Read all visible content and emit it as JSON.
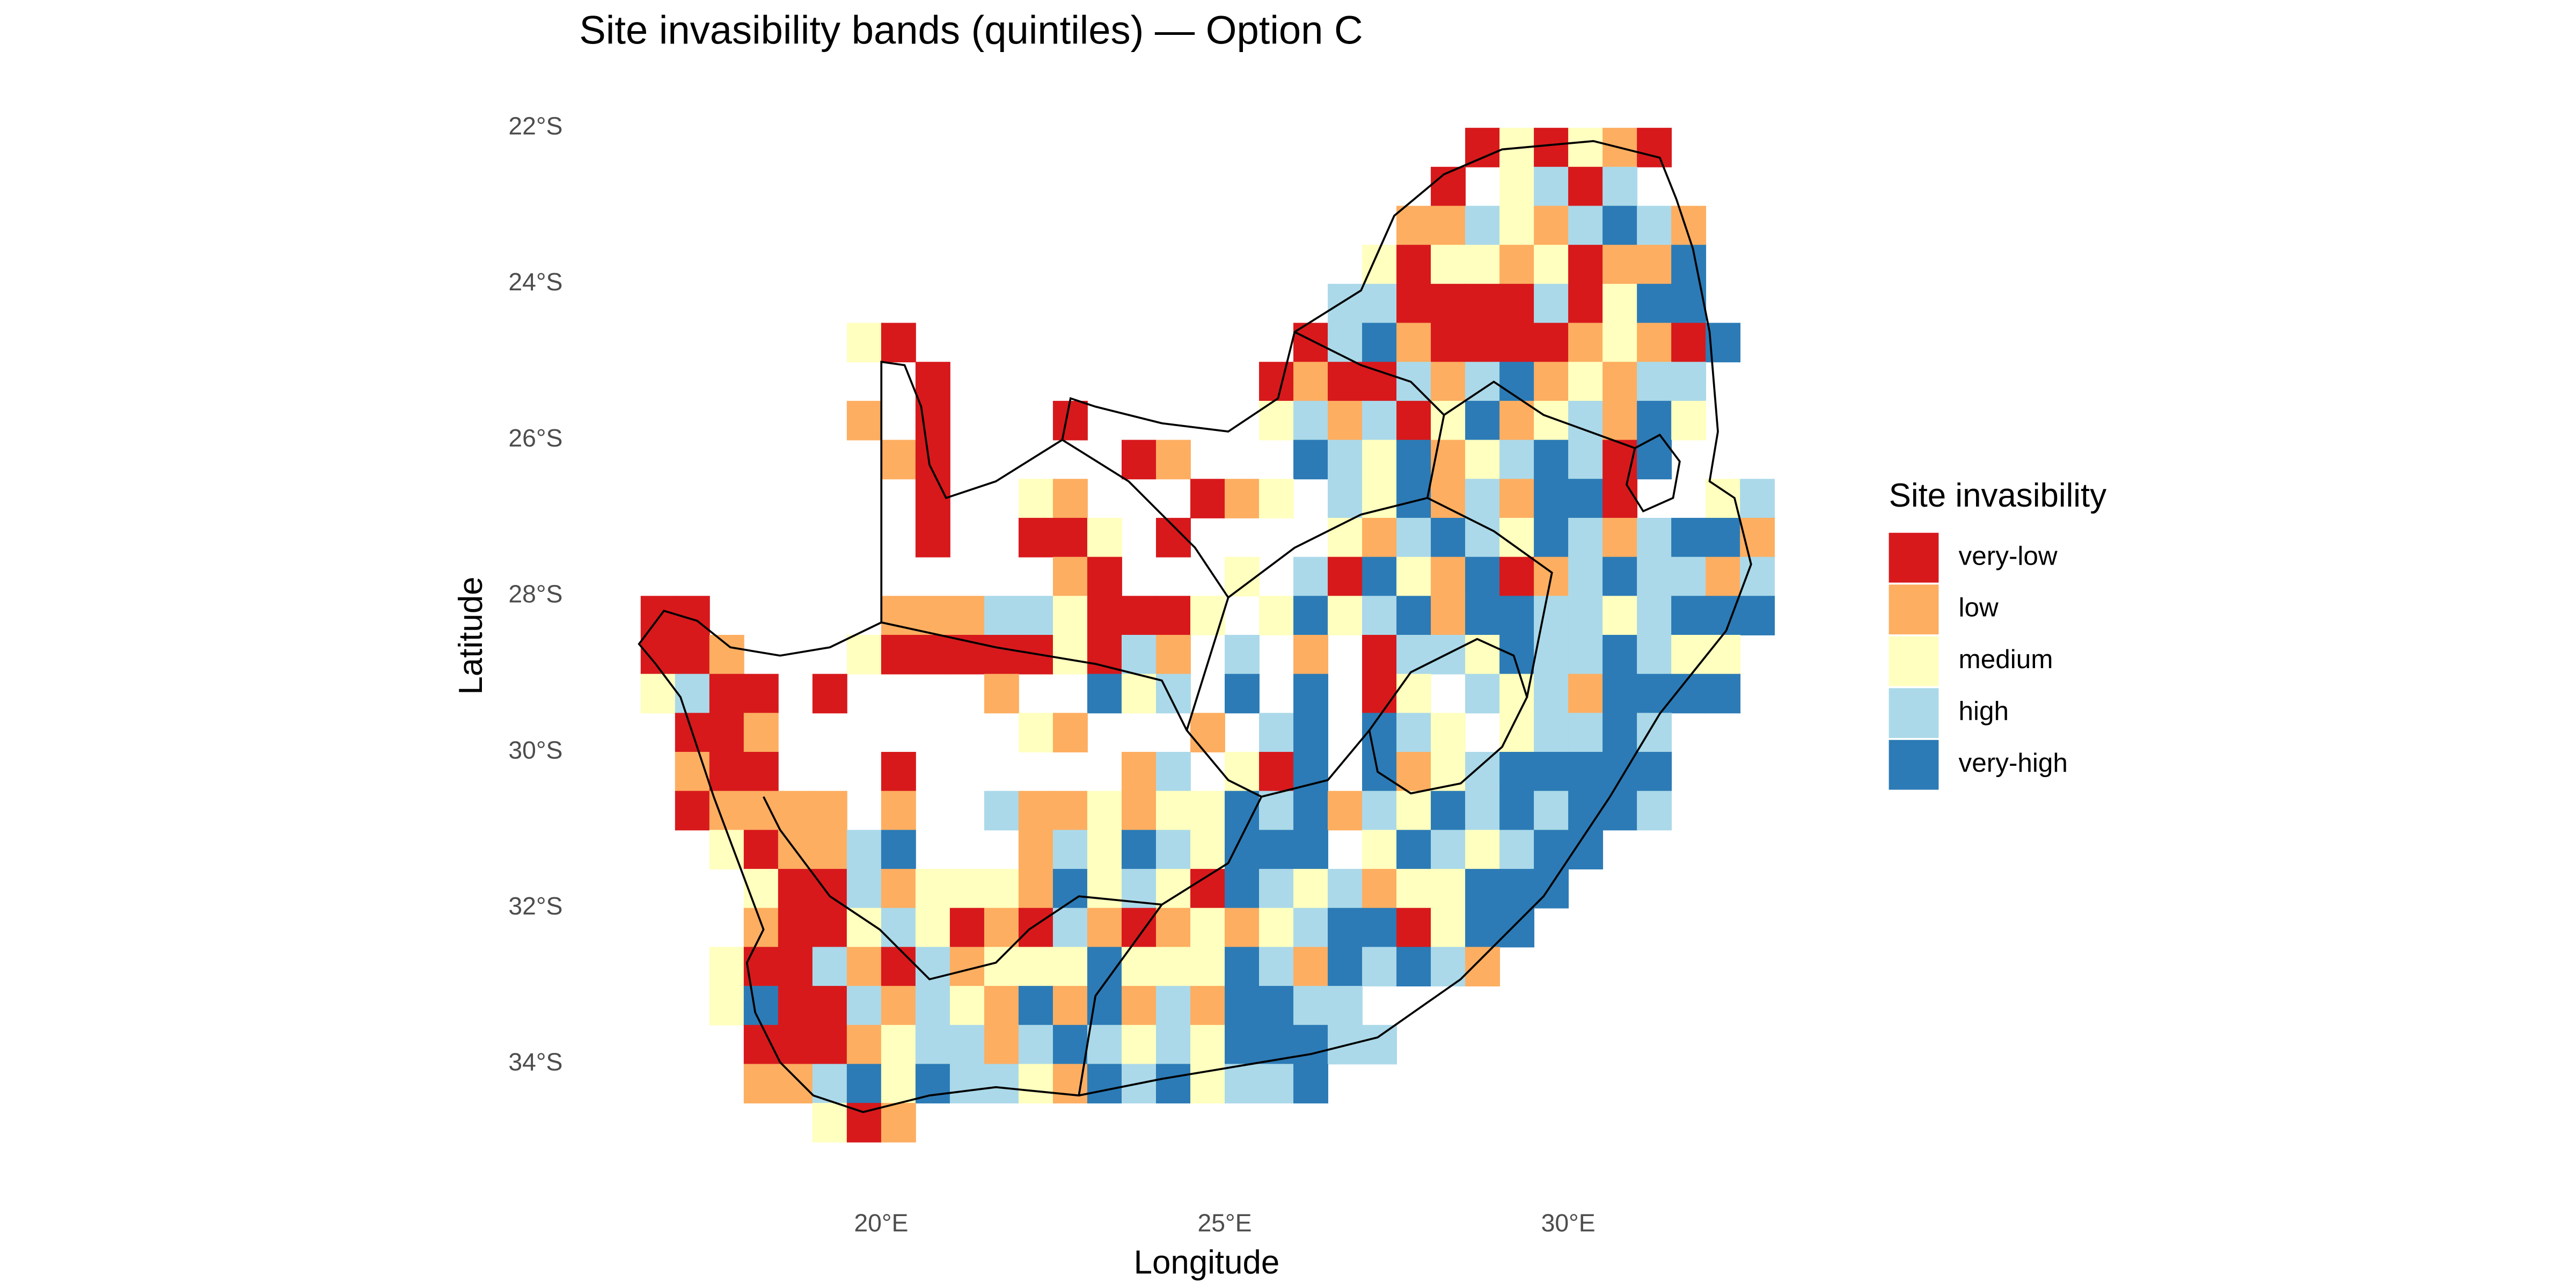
{
  "chart_data": {
    "type": "raster",
    "title": "Site invasibility bands (quintiles) — Option C",
    "x_label": "Longitude",
    "y_label": "Latitude",
    "legend": {
      "title": "Site invasibility",
      "entries": [
        {
          "name": "very-low",
          "color": "#d7191c"
        },
        {
          "name": "low",
          "color": "#fdae61"
        },
        {
          "name": "medium",
          "color": "#ffffbf"
        },
        {
          "name": "high",
          "color": "#abd9e9"
        },
        {
          "name": "very-high",
          "color": "#2c7bb6"
        }
      ]
    },
    "xlim": [
      16.5,
      33
    ],
    "ylim": [
      -35,
      -22
    ],
    "xticks": [
      {
        "value": 20,
        "label": "20°E"
      },
      {
        "value": 25,
        "label": "25°E"
      },
      {
        "value": 30,
        "label": "30°E"
      }
    ],
    "yticks": [
      {
        "value": -22,
        "label": "22°S"
      },
      {
        "value": -24,
        "label": "24°S"
      },
      {
        "value": -26,
        "label": "26°S"
      },
      {
        "value": -28,
        "label": "28°S"
      },
      {
        "value": -30,
        "label": "30°S"
      },
      {
        "value": -32,
        "label": "32°S"
      },
      {
        "value": -34,
        "label": "34°S"
      }
    ],
    "grid": false,
    "x": [
      16.75,
      17.25,
      17.75,
      18.25,
      18.75,
      19.25,
      19.75,
      20.25,
      20.75,
      21.25,
      21.75,
      22.25,
      22.75,
      23.25,
      23.75,
      24.25,
      24.75,
      25.25,
      25.75,
      26.25,
      26.75,
      27.25,
      27.75,
      28.25,
      28.75,
      29.25,
      29.75,
      30.25,
      30.75,
      31.25,
      31.75,
      32.25,
      32.75
    ],
    "y": [
      -22.25,
      -22.75,
      -23.25,
      -23.75,
      -24.25,
      -24.75,
      -25.25,
      -25.75,
      -26.25,
      -26.75,
      -27.25,
      -27.75,
      -28.25,
      -28.75,
      -29.25,
      -29.75,
      -30.25,
      -30.75,
      -31.25,
      -31.75,
      -32.25,
      -32.75,
      -33.25,
      -33.75,
      -34.25,
      -34.75
    ],
    "values": [
      [
        null,
        null,
        null,
        null,
        null,
        null,
        null,
        null,
        null,
        null,
        null,
        null,
        null,
        null,
        null,
        null,
        null,
        null,
        null,
        null,
        null,
        null,
        null,
        null,
        0,
        2,
        0,
        2,
        1,
        0,
        null,
        null,
        null
      ],
      [
        null,
        null,
        null,
        null,
        null,
        null,
        null,
        null,
        null,
        null,
        null,
        null,
        null,
        null,
        null,
        null,
        null,
        null,
        null,
        null,
        null,
        null,
        null,
        0,
        null,
        2,
        3,
        0,
        3,
        null,
        null,
        null,
        null
      ],
      [
        null,
        null,
        null,
        null,
        null,
        null,
        null,
        null,
        null,
        null,
        null,
        null,
        null,
        null,
        null,
        null,
        null,
        null,
        null,
        null,
        null,
        null,
        1,
        1,
        3,
        2,
        1,
        3,
        4,
        3,
        1,
        null,
        null
      ],
      [
        null,
        null,
        null,
        null,
        null,
        null,
        null,
        null,
        null,
        null,
        null,
        null,
        null,
        null,
        null,
        null,
        null,
        null,
        null,
        null,
        null,
        2,
        0,
        2,
        2,
        1,
        2,
        0,
        1,
        1,
        4,
        null,
        null
      ],
      [
        null,
        null,
        null,
        null,
        null,
        null,
        null,
        null,
        null,
        null,
        null,
        null,
        null,
        null,
        null,
        null,
        null,
        null,
        null,
        null,
        3,
        3,
        0,
        0,
        0,
        0,
        3,
        0,
        2,
        4,
        4,
        null,
        null
      ],
      [
        null,
        null,
        null,
        null,
        null,
        null,
        2,
        0,
        null,
        null,
        null,
        null,
        null,
        null,
        null,
        null,
        null,
        null,
        null,
        0,
        3,
        4,
        1,
        0,
        0,
        0,
        0,
        1,
        2,
        1,
        0,
        4,
        null
      ],
      [
        null,
        null,
        null,
        null,
        null,
        null,
        null,
        null,
        0,
        null,
        null,
        null,
        null,
        null,
        null,
        null,
        null,
        null,
        0,
        1,
        0,
        0,
        3,
        1,
        3,
        4,
        1,
        2,
        1,
        3,
        3,
        null,
        null
      ],
      [
        null,
        null,
        null,
        null,
        null,
        null,
        1,
        null,
        0,
        null,
        null,
        null,
        0,
        null,
        null,
        null,
        null,
        null,
        2,
        3,
        1,
        3,
        0,
        2,
        4,
        1,
        2,
        3,
        1,
        4,
        2,
        null,
        null
      ],
      [
        null,
        null,
        null,
        null,
        null,
        null,
        null,
        1,
        0,
        null,
        null,
        null,
        null,
        null,
        0,
        1,
        null,
        null,
        null,
        4,
        3,
        2,
        4,
        1,
        2,
        3,
        4,
        3,
        0,
        4,
        null,
        null,
        null
      ],
      [
        null,
        null,
        null,
        null,
        null,
        null,
        null,
        null,
        0,
        null,
        null,
        2,
        1,
        null,
        null,
        null,
        0,
        1,
        2,
        null,
        3,
        2,
        4,
        1,
        3,
        1,
        4,
        4,
        0,
        null,
        null,
        2,
        3
      ],
      [
        null,
        null,
        null,
        null,
        null,
        null,
        null,
        null,
        0,
        null,
        null,
        0,
        0,
        2,
        null,
        0,
        null,
        null,
        null,
        null,
        2,
        1,
        3,
        4,
        3,
        2,
        4,
        3,
        1,
        3,
        4,
        4,
        1
      ],
      [
        null,
        null,
        null,
        null,
        null,
        null,
        null,
        null,
        null,
        null,
        null,
        null,
        1,
        0,
        null,
        null,
        null,
        2,
        null,
        3,
        0,
        4,
        2,
        1,
        4,
        0,
        1,
        3,
        4,
        3,
        3,
        1,
        3
      ],
      [
        0,
        0,
        null,
        null,
        null,
        null,
        null,
        1,
        1,
        1,
        3,
        3,
        2,
        0,
        0,
        0,
        2,
        null,
        2,
        4,
        2,
        3,
        4,
        1,
        4,
        4,
        3,
        3,
        2,
        3,
        4,
        4,
        4
      ],
      [
        0,
        0,
        1,
        null,
        null,
        null,
        2,
        0,
        0,
        0,
        0,
        0,
        2,
        0,
        3,
        1,
        null,
        3,
        null,
        1,
        null,
        0,
        3,
        3,
        2,
        4,
        3,
        3,
        4,
        3,
        2,
        2,
        null
      ],
      [
        2,
        3,
        0,
        0,
        null,
        0,
        null,
        null,
        null,
        null,
        1,
        null,
        null,
        4,
        2,
        3,
        null,
        4,
        null,
        4,
        null,
        0,
        2,
        null,
        3,
        2,
        3,
        1,
        4,
        4,
        4,
        4,
        null
      ],
      [
        null,
        0,
        0,
        1,
        null,
        null,
        null,
        null,
        null,
        null,
        null,
        2,
        1,
        null,
        null,
        null,
        1,
        null,
        3,
        4,
        null,
        4,
        3,
        2,
        null,
        2,
        3,
        3,
        4,
        3,
        null,
        null,
        null
      ],
      [
        null,
        1,
        0,
        0,
        null,
        null,
        null,
        0,
        null,
        null,
        null,
        null,
        null,
        null,
        1,
        3,
        null,
        2,
        0,
        4,
        null,
        4,
        1,
        2,
        3,
        4,
        4,
        4,
        4,
        4,
        null,
        null,
        null
      ],
      [
        null,
        0,
        1,
        1,
        1,
        1,
        null,
        1,
        null,
        null,
        3,
        1,
        1,
        2,
        1,
        2,
        2,
        4,
        3,
        4,
        1,
        3,
        2,
        4,
        3,
        4,
        3,
        4,
        4,
        3,
        null,
        null,
        null
      ],
      [
        null,
        null,
        2,
        0,
        1,
        1,
        3,
        4,
        null,
        null,
        null,
        1,
        3,
        2,
        4,
        3,
        2,
        4,
        4,
        4,
        null,
        2,
        4,
        3,
        2,
        3,
        4,
        4,
        null,
        null,
        null,
        null,
        null
      ],
      [
        null,
        null,
        null,
        2,
        0,
        0,
        3,
        1,
        2,
        2,
        2,
        1,
        4,
        2,
        3,
        2,
        0,
        4,
        3,
        2,
        3,
        1,
        2,
        2,
        4,
        4,
        4,
        null,
        null,
        null,
        null,
        null,
        null
      ],
      [
        null,
        null,
        null,
        1,
        0,
        0,
        2,
        3,
        2,
        0,
        1,
        0,
        3,
        1,
        0,
        1,
        2,
        1,
        2,
        3,
        4,
        4,
        0,
        2,
        4,
        4,
        null,
        null,
        null,
        null,
        null,
        null,
        null
      ],
      [
        null,
        null,
        2,
        0,
        0,
        3,
        1,
        0,
        3,
        1,
        2,
        2,
        2,
        4,
        2,
        2,
        2,
        4,
        3,
        1,
        4,
        3,
        4,
        3,
        1,
        null,
        null,
        null,
        null,
        null,
        null,
        null,
        null
      ],
      [
        null,
        null,
        2,
        4,
        0,
        0,
        3,
        1,
        3,
        2,
        1,
        4,
        1,
        4,
        1,
        3,
        1,
        4,
        4,
        3,
        3,
        null,
        null,
        null,
        null,
        null,
        null,
        null,
        null,
        null,
        null,
        null,
        null
      ],
      [
        null,
        null,
        null,
        0,
        0,
        0,
        1,
        2,
        3,
        3,
        1,
        3,
        4,
        3,
        2,
        3,
        2,
        4,
        4,
        4,
        3,
        3,
        null,
        null,
        null,
        null,
        null,
        null,
        null,
        null,
        null,
        null,
        null
      ],
      [
        null,
        null,
        null,
        1,
        1,
        3,
        4,
        2,
        4,
        3,
        3,
        2,
        1,
        4,
        3,
        4,
        2,
        3,
        3,
        4,
        null,
        null,
        null,
        null,
        null,
        null,
        null,
        null,
        null,
        null,
        null,
        null,
        null
      ],
      [
        null,
        null,
        null,
        null,
        null,
        2,
        0,
        1,
        null,
        null,
        null,
        null,
        null,
        null,
        null,
        null,
        null,
        null,
        null,
        null,
        null,
        null,
        null,
        null,
        null,
        null,
        null,
        null,
        null,
        null,
        null,
        null,
        null
      ]
    ]
  }
}
